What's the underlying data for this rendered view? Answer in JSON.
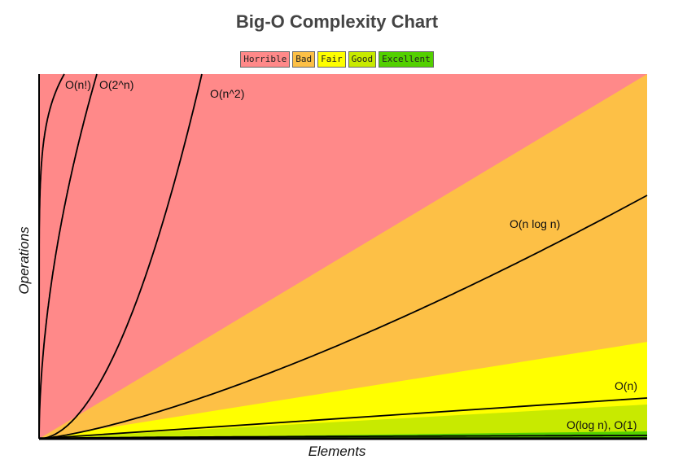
{
  "chart_data": {
    "type": "area",
    "title": "Big-O Complexity Chart",
    "xlabel": "Elements",
    "ylabel": "Operations",
    "legend": [
      {
        "name": "Horrible",
        "color": "#ff8989"
      },
      {
        "name": "Bad",
        "color": "#fdc046"
      },
      {
        "name": "Fair",
        "color": "#ffff00"
      },
      {
        "name": "Good",
        "color": "#c8ea00"
      },
      {
        "name": "Excellent",
        "color": "#53d000"
      }
    ],
    "series": [
      {
        "name": "O(n!)"
      },
      {
        "name": "O(2^n)"
      },
      {
        "name": "O(n^2)"
      },
      {
        "name": "O(n log n)"
      },
      {
        "name": "O(n)"
      },
      {
        "name": "O(log n), O(1)"
      }
    ],
    "grid": false
  }
}
